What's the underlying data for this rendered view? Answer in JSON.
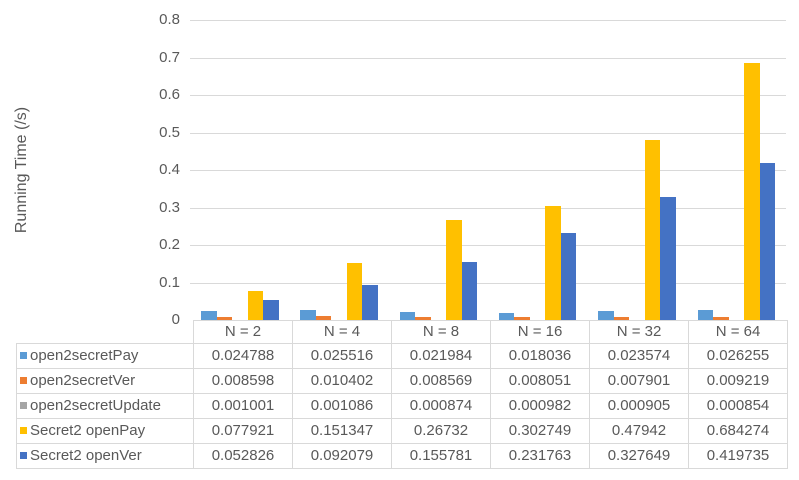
{
  "chart_data": {
    "type": "bar",
    "title": "",
    "xlabel": "",
    "ylabel": "Running Time (/s)",
    "ylim": [
      0,
      0.8
    ],
    "yticks": [
      "0",
      "0.1",
      "0.2",
      "0.3",
      "0.4",
      "0.5",
      "0.6",
      "0.7",
      "0.8"
    ],
    "grid": true,
    "legend_position": "data-table",
    "categories": [
      "N = 2",
      "N = 4",
      "N = 8",
      "N = 16",
      "N = 32",
      "N = 64"
    ],
    "series": [
      {
        "name": "open2secretPay",
        "color": "#5B9BD5",
        "values": [
          0.024788,
          0.025516,
          0.021984,
          0.018036,
          0.023574,
          0.026255
        ],
        "labels": [
          "0.024788",
          "0.025516",
          "0.021984",
          "0.018036",
          "0.023574",
          "0.026255"
        ]
      },
      {
        "name": "open2secretVer",
        "color": "#ED7D31",
        "values": [
          0.008598,
          0.010402,
          0.008569,
          0.008051,
          0.007901,
          0.009219
        ],
        "labels": [
          "0.008598",
          "0.010402",
          "0.008569",
          "0.008051",
          "0.007901",
          "0.009219"
        ]
      },
      {
        "name": "open2secretUpdate",
        "color": "#A5A5A5",
        "values": [
          0.001001,
          0.001086,
          0.000874,
          0.000982,
          0.000905,
          0.000854
        ],
        "labels": [
          "0.001001",
          "0.001086",
          "0.000874",
          "0.000982",
          "0.000905",
          "0.000854"
        ]
      },
      {
        "name": "Secret2 openPay",
        "color": "#FFC000",
        "values": [
          0.077921,
          0.151347,
          0.26732,
          0.302749,
          0.47942,
          0.684274
        ],
        "labels": [
          "0.077921",
          "0.151347",
          "0.26732",
          "0.302749",
          "0.47942",
          "0.684274"
        ]
      },
      {
        "name": "Secret2 openVer",
        "color": "#4472C4",
        "values": [
          0.052826,
          0.092079,
          0.155781,
          0.231763,
          0.327649,
          0.419735
        ],
        "labels": [
          "0.052826",
          "0.092079",
          "0.155781",
          "0.231763",
          "0.327649",
          "0.419735"
        ]
      }
    ]
  }
}
